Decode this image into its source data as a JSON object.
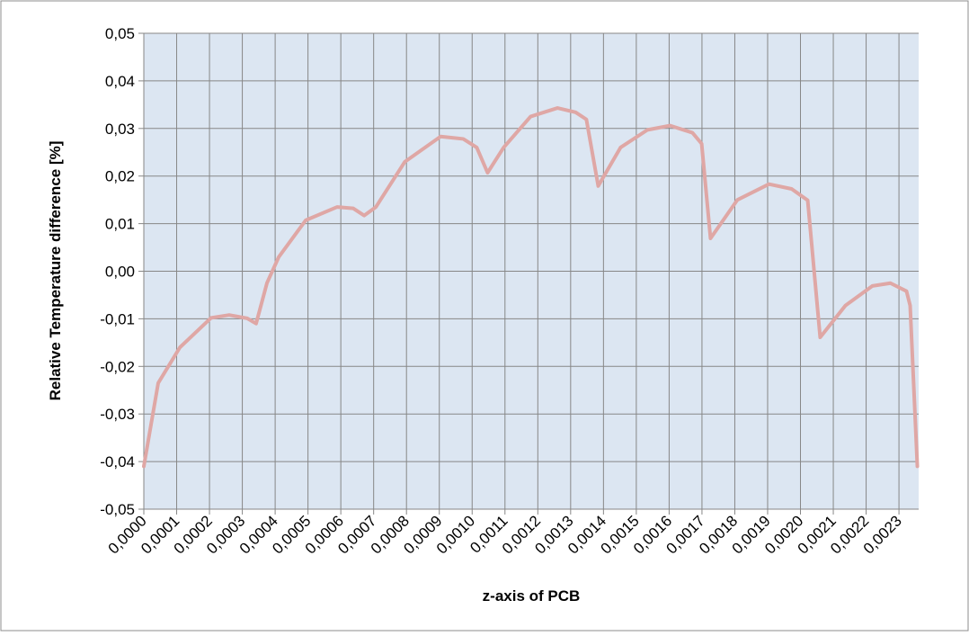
{
  "chart_data": {
    "type": "line",
    "xlabel": "z-axis of PCB",
    "ylabel": "Relative Temperature difference [%]",
    "x": [
      0,
      4.38e-05,
      0.00011,
      0.000205,
      0.00026,
      0.000315,
      0.000342,
      0.000375,
      0.000411,
      0.000493,
      0.000589,
      0.000638,
      0.000671,
      0.000707,
      0.000795,
      0.000904,
      0.000973,
      0.001014,
      0.001047,
      0.001096,
      0.001178,
      0.00126,
      0.001315,
      0.001348,
      0.001384,
      0.001452,
      0.001534,
      0.001603,
      0.001671,
      0.001699,
      0.001726,
      0.001808,
      0.001904,
      0.001973,
      0.002022,
      0.00206,
      0.002137,
      0.002219,
      0.002274,
      0.002323,
      0.002334,
      0.002356
    ],
    "series": [
      {
        "color": "#dfa7a5",
        "values": [
          -0.041,
          -0.0235,
          -0.016,
          -0.0098,
          -0.0092,
          -0.0099,
          -0.011,
          -0.0025,
          0.003,
          0.0107,
          0.0135,
          0.0132,
          0.0117,
          0.0135,
          0.023,
          0.0283,
          0.0278,
          0.026,
          0.0207,
          0.026,
          0.0325,
          0.0343,
          0.0334,
          0.0319,
          0.0179,
          0.026,
          0.0297,
          0.0306,
          0.0291,
          0.0268,
          0.0069,
          0.015,
          0.0183,
          0.0173,
          0.0149,
          -0.0139,
          -0.0072,
          -0.0031,
          -0.0025,
          -0.0042,
          -0.0072,
          -0.041
        ]
      }
    ],
    "xlim": [
      0,
      0.00236
    ],
    "xticks": [
      {
        "value": 0,
        "label": "0,0000"
      },
      {
        "value": 0.0001,
        "label": "0,0001"
      },
      {
        "value": 0.0002,
        "label": "0,0002"
      },
      {
        "value": 0.0003,
        "label": "0,0003"
      },
      {
        "value": 0.0004,
        "label": "0,0004"
      },
      {
        "value": 0.0005,
        "label": "0,0005"
      },
      {
        "value": 0.0006,
        "label": "0,0006"
      },
      {
        "value": 0.0007,
        "label": "0,0007"
      },
      {
        "value": 0.0008,
        "label": "0,0008"
      },
      {
        "value": 0.0009,
        "label": "0,0009"
      },
      {
        "value": 0.001,
        "label": "0,0010"
      },
      {
        "value": 0.0011,
        "label": "0,0011"
      },
      {
        "value": 0.0012,
        "label": "0,0012"
      },
      {
        "value": 0.0013,
        "label": "0,0013"
      },
      {
        "value": 0.0014,
        "label": "0,0014"
      },
      {
        "value": 0.0015,
        "label": "0,0015"
      },
      {
        "value": 0.0016,
        "label": "0,0016"
      },
      {
        "value": 0.0017,
        "label": "0,0017"
      },
      {
        "value": 0.0018,
        "label": "0,0018"
      },
      {
        "value": 0.0019,
        "label": "0,0019"
      },
      {
        "value": 0.002,
        "label": "0,0020"
      },
      {
        "value": 0.0021,
        "label": "0,0021"
      },
      {
        "value": 0.0022,
        "label": "0,0022"
      },
      {
        "value": 0.0023,
        "label": "0,0023"
      }
    ],
    "ylim": [
      -0.05,
      0.05
    ],
    "yticks": [
      {
        "value": -0.05,
        "label": "-0,05"
      },
      {
        "value": -0.04,
        "label": "-0,04"
      },
      {
        "value": -0.03,
        "label": "-0,03"
      },
      {
        "value": -0.02,
        "label": "-0,02"
      },
      {
        "value": -0.01,
        "label": "-0,01"
      },
      {
        "value": 0,
        "label": "0,00"
      },
      {
        "value": 0.01,
        "label": "0,01"
      },
      {
        "value": 0.02,
        "label": "0,02"
      },
      {
        "value": 0.03,
        "label": "0,03"
      },
      {
        "value": 0.04,
        "label": "0,04"
      },
      {
        "value": 0.05,
        "label": "0,05"
      }
    ],
    "grid": true
  }
}
